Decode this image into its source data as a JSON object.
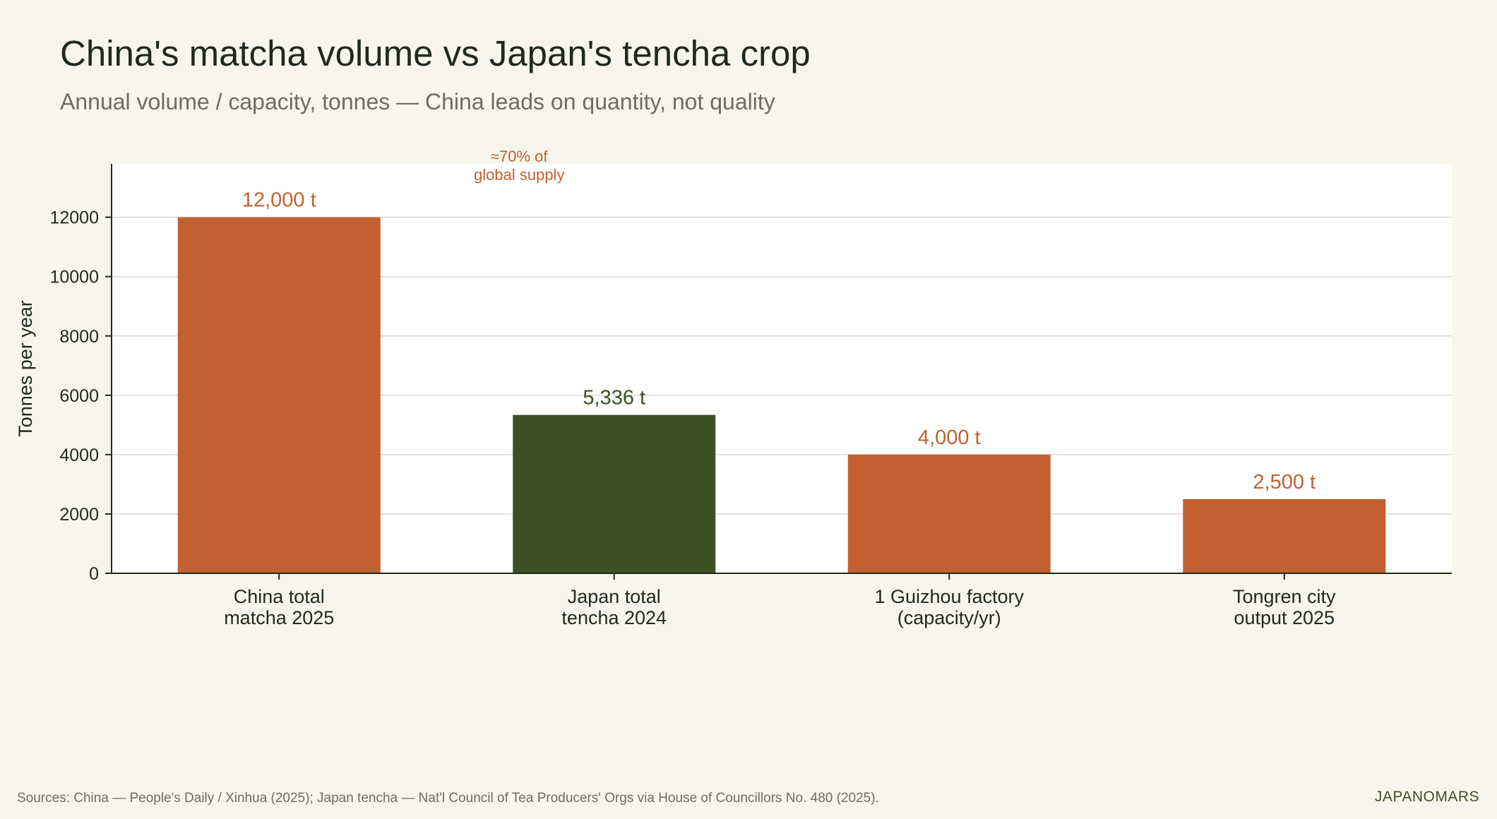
{
  "title": "China's matcha volume vs Japan's tencha crop",
  "subtitle": "Annual volume / capacity, tonnes — China leads on quantity, not quality",
  "footer": {
    "sources": "Sources: China — People's Daily / Xinhua (2025); Japan tencha — Nat'l Council of Tea Producers' Orgs via House of Councillors No. 480 (2025).",
    "brand": "JAPANOMARS"
  },
  "colors": {
    "china": "#c2612f",
    "japan": "#3d5023",
    "plot_bg": "#ffffff",
    "page_bg": "#f8f6ec"
  },
  "chart_data": {
    "type": "bar",
    "categories": [
      [
        "China total",
        "matcha 2025"
      ],
      [
        "Japan total",
        "tencha 2024"
      ],
      [
        "1 Guizhou factory",
        "(capacity/yr)"
      ],
      [
        "Tongren city",
        "output 2025"
      ]
    ],
    "values": [
      12000,
      5336,
      4000,
      2500
    ],
    "value_labels": [
      "12,000 t",
      "5,336 t",
      "4,000 t",
      "2,500 t"
    ],
    "bar_colors": [
      "#c2612f",
      "#3d5023",
      "#c2612f",
      "#c2612f"
    ],
    "ylabel": "Tonnes per year",
    "xlabel": "",
    "ylim": [
      0,
      13800
    ],
    "yticks": [
      0,
      2000,
      4000,
      6000,
      8000,
      10000,
      12000
    ],
    "grid": "horizontal",
    "annotation": {
      "category_index": 0,
      "lines": [
        "≈70% of",
        "global supply"
      ],
      "color": "#c2612f"
    }
  }
}
